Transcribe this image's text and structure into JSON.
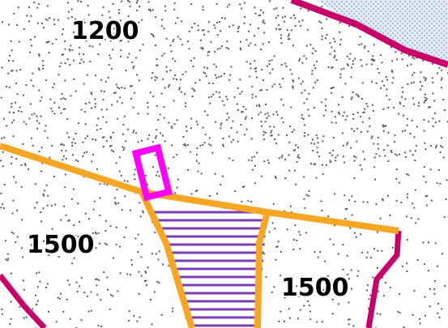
{
  "map": {
    "labels": {
      "zone_north": "1200",
      "zone_west": "1500",
      "zone_southeast": "1500"
    },
    "colors": {
      "background": "#ffffff",
      "speckle": "#5a5a5a",
      "orange_boundary": "#f5a623",
      "magenta_boundary": "#c8006a",
      "highlight_marker": "#ff00ff",
      "hatch": "#7a3db8",
      "dotted_fill": "#c8d8ec"
    }
  }
}
